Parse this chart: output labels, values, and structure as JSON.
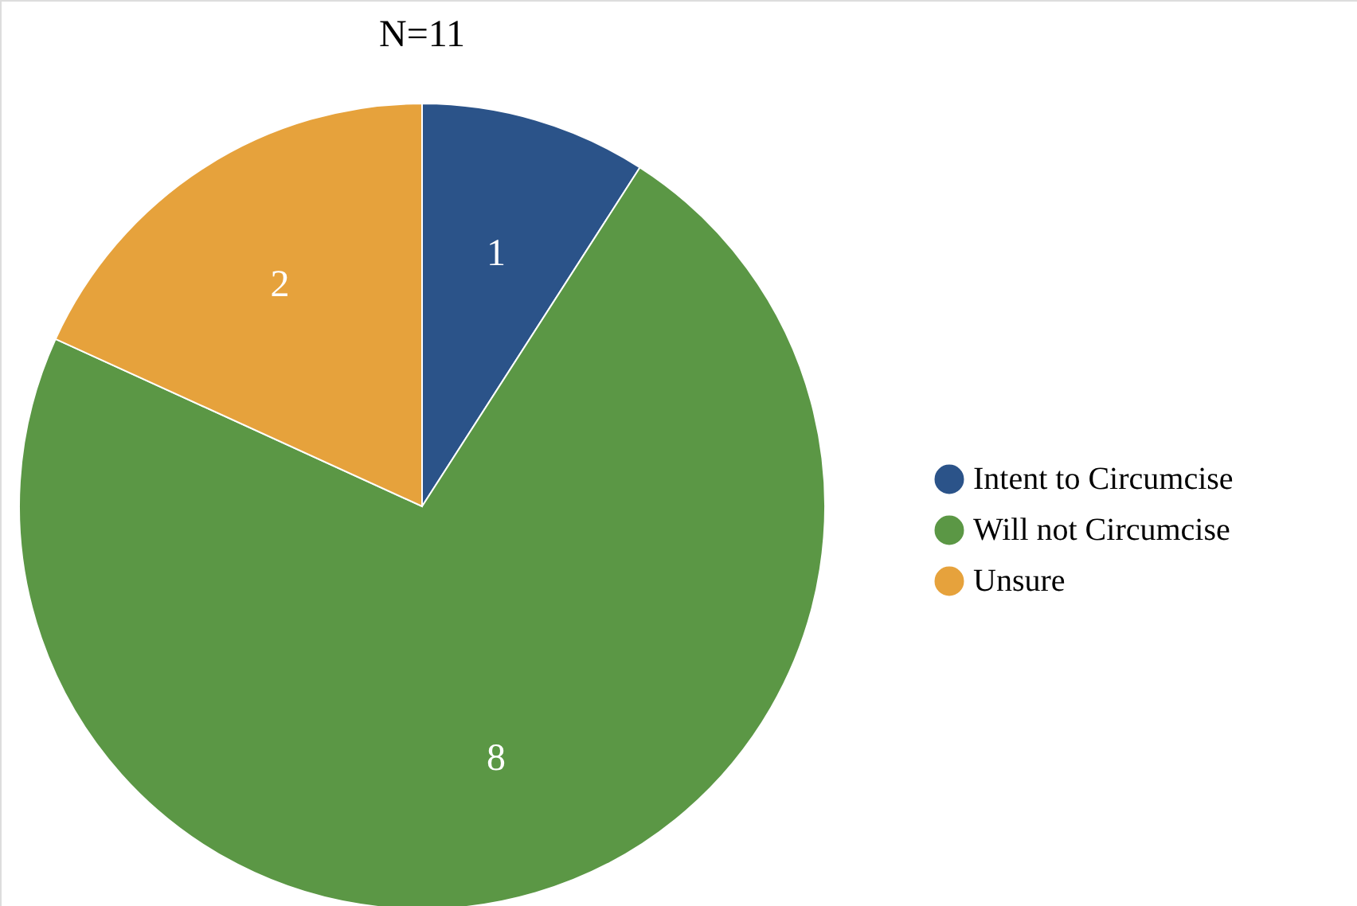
{
  "chart_data": {
    "type": "pie",
    "title": "N=11",
    "categories": [
      "Intent to Circumcise",
      "Will not Circumcise",
      "Unsure"
    ],
    "values": [
      1,
      8,
      2
    ],
    "colors": [
      "#2b5389",
      "#5b9745",
      "#e6a23c"
    ],
    "data_labels": true,
    "legend": "right"
  }
}
